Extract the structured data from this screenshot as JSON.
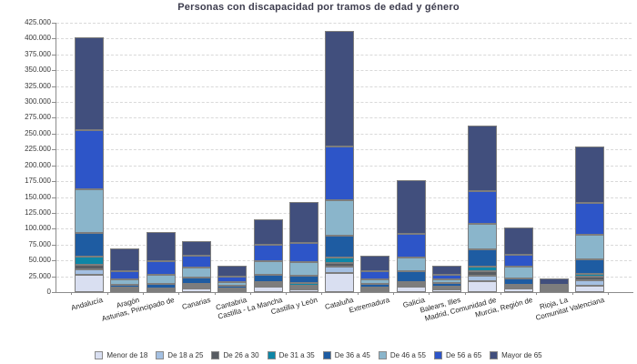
{
  "chart_data": {
    "type": "bar",
    "stacked": true,
    "title": "Personas con discapacidad por tramos de edad y género",
    "categories": [
      "Andalucía",
      "Aragón",
      "Asturias, Principado de",
      "Canarias",
      "Cantabria",
      "Castilla - La Mancha",
      "Castilla y León",
      "Cataluña",
      "Extremadura",
      "Galicia",
      "Balears, Illes",
      "Madrid, Comunidad de",
      "Murcia, Región de",
      "Rioja, La",
      "Comunitat Valenciana"
    ],
    "series": [
      {
        "name": "Menor de 18",
        "color": "#d9dff1",
        "values": [
          27000,
          2500,
          2800,
          5500,
          2400,
          8500,
          3900,
          30200,
          3500,
          8600,
          4400,
          16800,
          6200,
          1900,
          9600
        ]
      },
      {
        "name": "De 18 a 25",
        "color": "#a4c0e2",
        "values": [
          9000,
          1500,
          1400,
          3600,
          1400,
          3300,
          3700,
          9600,
          1700,
          3100,
          2200,
          9500,
          2700,
          1000,
          8600
        ]
      },
      {
        "name": "De 26 a 30",
        "color": "#585c62",
        "values": [
          7500,
          1000,
          1000,
          1500,
          700,
          1700,
          2900,
          5700,
          1000,
          2000,
          1200,
          6300,
          1500,
          500,
          6200
        ]
      },
      {
        "name": "De 31 a 35",
        "color": "#0e86a6",
        "values": [
          12500,
          1500,
          1000,
          1900,
          800,
          2300,
          3900,
          8600,
          1000,
          2100,
          1200,
          7200,
          1500,
          500,
          4300
        ]
      },
      {
        "name": "De 36 a 45",
        "color": "#1e5ca2",
        "values": [
          37500,
          5000,
          7200,
          10500,
          4700,
          11900,
          11000,
          34500,
          5300,
          16800,
          5400,
          27700,
          9600,
          1800,
          23000
        ]
      },
      {
        "name": "De 46 a 55",
        "color": "#8ab5cb",
        "values": [
          68500,
          8500,
          14300,
          15800,
          5800,
          20700,
          22400,
          56400,
          7200,
          21500,
          5300,
          40200,
          18300,
          2500,
          38300
        ]
      },
      {
        "name": "De 56 a 65",
        "color": "#2d55c8",
        "values": [
          93000,
          13000,
          21600,
          19100,
          8600,
          25800,
          30200,
          85200,
          12900,
          38200,
          8000,
          51700,
          19100,
          3700,
          51100
        ]
      },
      {
        "name": "Mayor de 65",
        "color": "#414f7d",
        "values": [
          147500,
          35500,
          45500,
          22500,
          17700,
          41100,
          64600,
          181400,
          24800,
          83800,
          13500,
          103800,
          43000,
          9600,
          88600
        ]
      }
    ],
    "totals": [
      402500,
      68500,
      94800,
      80400,
      42100,
      115300,
      142600,
      411600,
      57400,
      176100,
      41200,
      263200,
      101900,
      21500,
      229700
    ],
    "xlabel": "",
    "ylabel": "",
    "ylim": [
      0,
      425000
    ],
    "ytick_step": 25000,
    "ytick_format": "thousands-dot",
    "grid": true,
    "grid_style": "dashed",
    "legend_position": "bottom",
    "bar_border_color": "#7d7d7d"
  }
}
